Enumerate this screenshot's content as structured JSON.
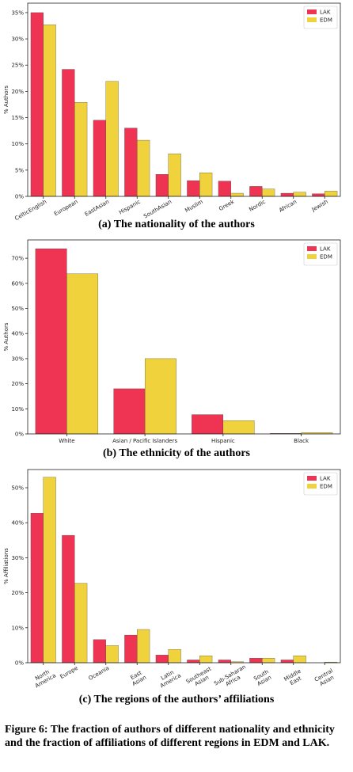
{
  "chart_data": [
    {
      "type": "bar",
      "caption": "(a) The nationality of the authors",
      "ylabel": "% Authors",
      "categories": [
        "CelticEnglish",
        "European",
        "EastAsian",
        "Hispanic",
        "SouthAsian",
        "Muslim",
        "Greek",
        "Nordic",
        "African",
        "Jewish"
      ],
      "series": [
        {
          "name": "LAK",
          "color": "#ee3452",
          "values": [
            35,
            24.2,
            14.5,
            13,
            4.2,
            3,
            2.9,
            1.9,
            0.6,
            0.5
          ]
        },
        {
          "name": "EDM",
          "color": "#f0d23c",
          "values": [
            32.7,
            17.9,
            21.9,
            10.7,
            8.1,
            4.5,
            0.6,
            1.4,
            0.8,
            1.0
          ]
        }
      ],
      "ylim": [
        0,
        36.8
      ],
      "yticks": [
        {
          "value": 0,
          "label": "0%"
        },
        {
          "value": 5,
          "label": "5%"
        },
        {
          "value": 10,
          "label": "10%"
        },
        {
          "value": 15,
          "label": "15%"
        },
        {
          "value": 20,
          "label": "20%"
        },
        {
          "value": 25,
          "label": "25%"
        },
        {
          "value": 30,
          "label": "30%"
        },
        {
          "value": 35,
          "label": "35%"
        }
      ],
      "xtick_rotation": 30,
      "legend": "upper right"
    },
    {
      "type": "bar",
      "caption": "(b) The ethnicity of the authors",
      "ylabel": "% Authors",
      "categories": [
        "White",
        "Asian / Pacific Islanders",
        "Hispanic",
        "Black"
      ],
      "series": [
        {
          "name": "LAK",
          "color": "#ee3452",
          "values": [
            73.8,
            18,
            7.7,
            0.2
          ]
        },
        {
          "name": "EDM",
          "color": "#f0d23c",
          "values": [
            63.8,
            30,
            5.3,
            0.5
          ]
        }
      ],
      "ylim": [
        0,
        77.3
      ],
      "yticks": [
        {
          "value": 0,
          "label": "0%"
        },
        {
          "value": 10,
          "label": "10%"
        },
        {
          "value": 20,
          "label": "20%"
        },
        {
          "value": 30,
          "label": "30%"
        },
        {
          "value": 40,
          "label": "40%"
        },
        {
          "value": 50,
          "label": "50%"
        },
        {
          "value": 60,
          "label": "60%"
        },
        {
          "value": 70,
          "label": "70%"
        }
      ],
      "xtick_rotation": 0,
      "legend": "upper right"
    },
    {
      "type": "bar",
      "caption": "(c) The regions of the authors’ affiliations",
      "ylabel": "% Affiliations",
      "categories": [
        "North America",
        "Europe",
        "Oceania",
        "East Asian",
        "Latin America",
        "Southeast Asian",
        "Sub-Saharan Africa",
        "South Asian",
        "Middle East",
        "Central Asian"
      ],
      "series": [
        {
          "name": "LAK",
          "color": "#ee3452",
          "values": [
            42.7,
            36.4,
            6.6,
            7.9,
            2.2,
            0.8,
            0.8,
            1.3,
            0.8,
            0
          ]
        },
        {
          "name": "EDM",
          "color": "#f0d23c",
          "values": [
            53,
            22.7,
            4.9,
            9.5,
            3.8,
            2.0,
            0.3,
            1.3,
            2.0,
            0.2
          ]
        }
      ],
      "ylim": [
        0,
        55.2
      ],
      "yticks": [
        {
          "value": 0,
          "label": "0%"
        },
        {
          "value": 10,
          "label": "10%"
        },
        {
          "value": 20,
          "label": "20%"
        },
        {
          "value": 30,
          "label": "30%"
        },
        {
          "value": 40,
          "label": "40%"
        },
        {
          "value": 50,
          "label": "50%"
        }
      ],
      "xtick_rotation": 30,
      "legend": "upper right"
    }
  ],
  "figure_caption": "Figure 6: The fraction of authors of different nationality and ethnicity and the fraction of affiliations of different regions in EDM and LAK."
}
